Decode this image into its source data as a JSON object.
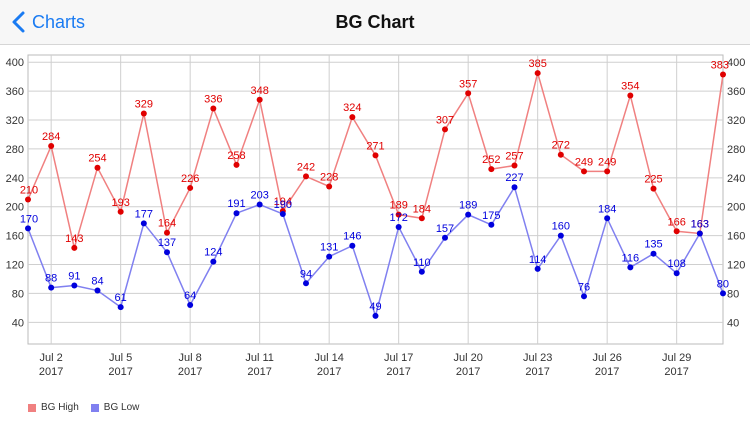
{
  "navbar": {
    "back_label": "Charts",
    "title": "BG Chart"
  },
  "icons": {
    "back": "chevron-left-icon"
  },
  "colors": {
    "accent": "#1a7bf2",
    "high_line": "#f08080",
    "high_point": "#e00000",
    "low_line": "#8080f0",
    "low_point": "#0000dd"
  },
  "chart_data": {
    "type": "line",
    "title": "",
    "xlabel": "",
    "ylabel": "",
    "x": [
      "Jul 1",
      "Jul 2",
      "Jul 3",
      "Jul 4",
      "Jul 5",
      "Jul 6",
      "Jul 7",
      "Jul 8",
      "Jul 9",
      "Jul 10",
      "Jul 11",
      "Jul 12",
      "Jul 13",
      "Jul 14",
      "Jul 15",
      "Jul 16",
      "Jul 17",
      "Jul 18",
      "Jul 19",
      "Jul 20",
      "Jul 21",
      "Jul 22",
      "Jul 23",
      "Jul 24",
      "Jul 25",
      "Jul 26",
      "Jul 27",
      "Jul 28",
      "Jul 29",
      "Jul 30",
      "Jul 31"
    ],
    "x_ticks": [
      {
        "index": 1,
        "line1": "Jul 2",
        "line2": "2017"
      },
      {
        "index": 4,
        "line1": "Jul 5",
        "line2": "2017"
      },
      {
        "index": 7,
        "line1": "Jul 8",
        "line2": "2017"
      },
      {
        "index": 10,
        "line1": "Jul 11",
        "line2": "2017"
      },
      {
        "index": 13,
        "line1": "Jul 14",
        "line2": "2017"
      },
      {
        "index": 16,
        "line1": "Jul 17",
        "line2": "2017"
      },
      {
        "index": 19,
        "line1": "Jul 20",
        "line2": "2017"
      },
      {
        "index": 22,
        "line1": "Jul 23",
        "line2": "2017"
      },
      {
        "index": 25,
        "line1": "Jul 26",
        "line2": "2017"
      },
      {
        "index": 28,
        "line1": "Jul 29",
        "line2": "2017"
      }
    ],
    "y_ticks": [
      40,
      80,
      120,
      160,
      200,
      240,
      280,
      320,
      360,
      400
    ],
    "ylim": [
      10,
      410
    ],
    "grid": true,
    "legend_position": "bottom-left",
    "series": [
      {
        "name": "BG High",
        "values": [
          210,
          284,
          143,
          254,
          193,
          329,
          164,
          226,
          336,
          258,
          348,
          194,
          242,
          228,
          324,
          271,
          189,
          184,
          307,
          357,
          252,
          257,
          385,
          272,
          249,
          249,
          354,
          225,
          166,
          163,
          383
        ]
      },
      {
        "name": "BG Low",
        "values": [
          170,
          88,
          91,
          84,
          61,
          177,
          137,
          64,
          124,
          191,
          203,
          190,
          94,
          131,
          146,
          49,
          172,
          110,
          157,
          189,
          175,
          227,
          114,
          160,
          76,
          184,
          116,
          135,
          108,
          163,
          80
        ]
      }
    ]
  }
}
